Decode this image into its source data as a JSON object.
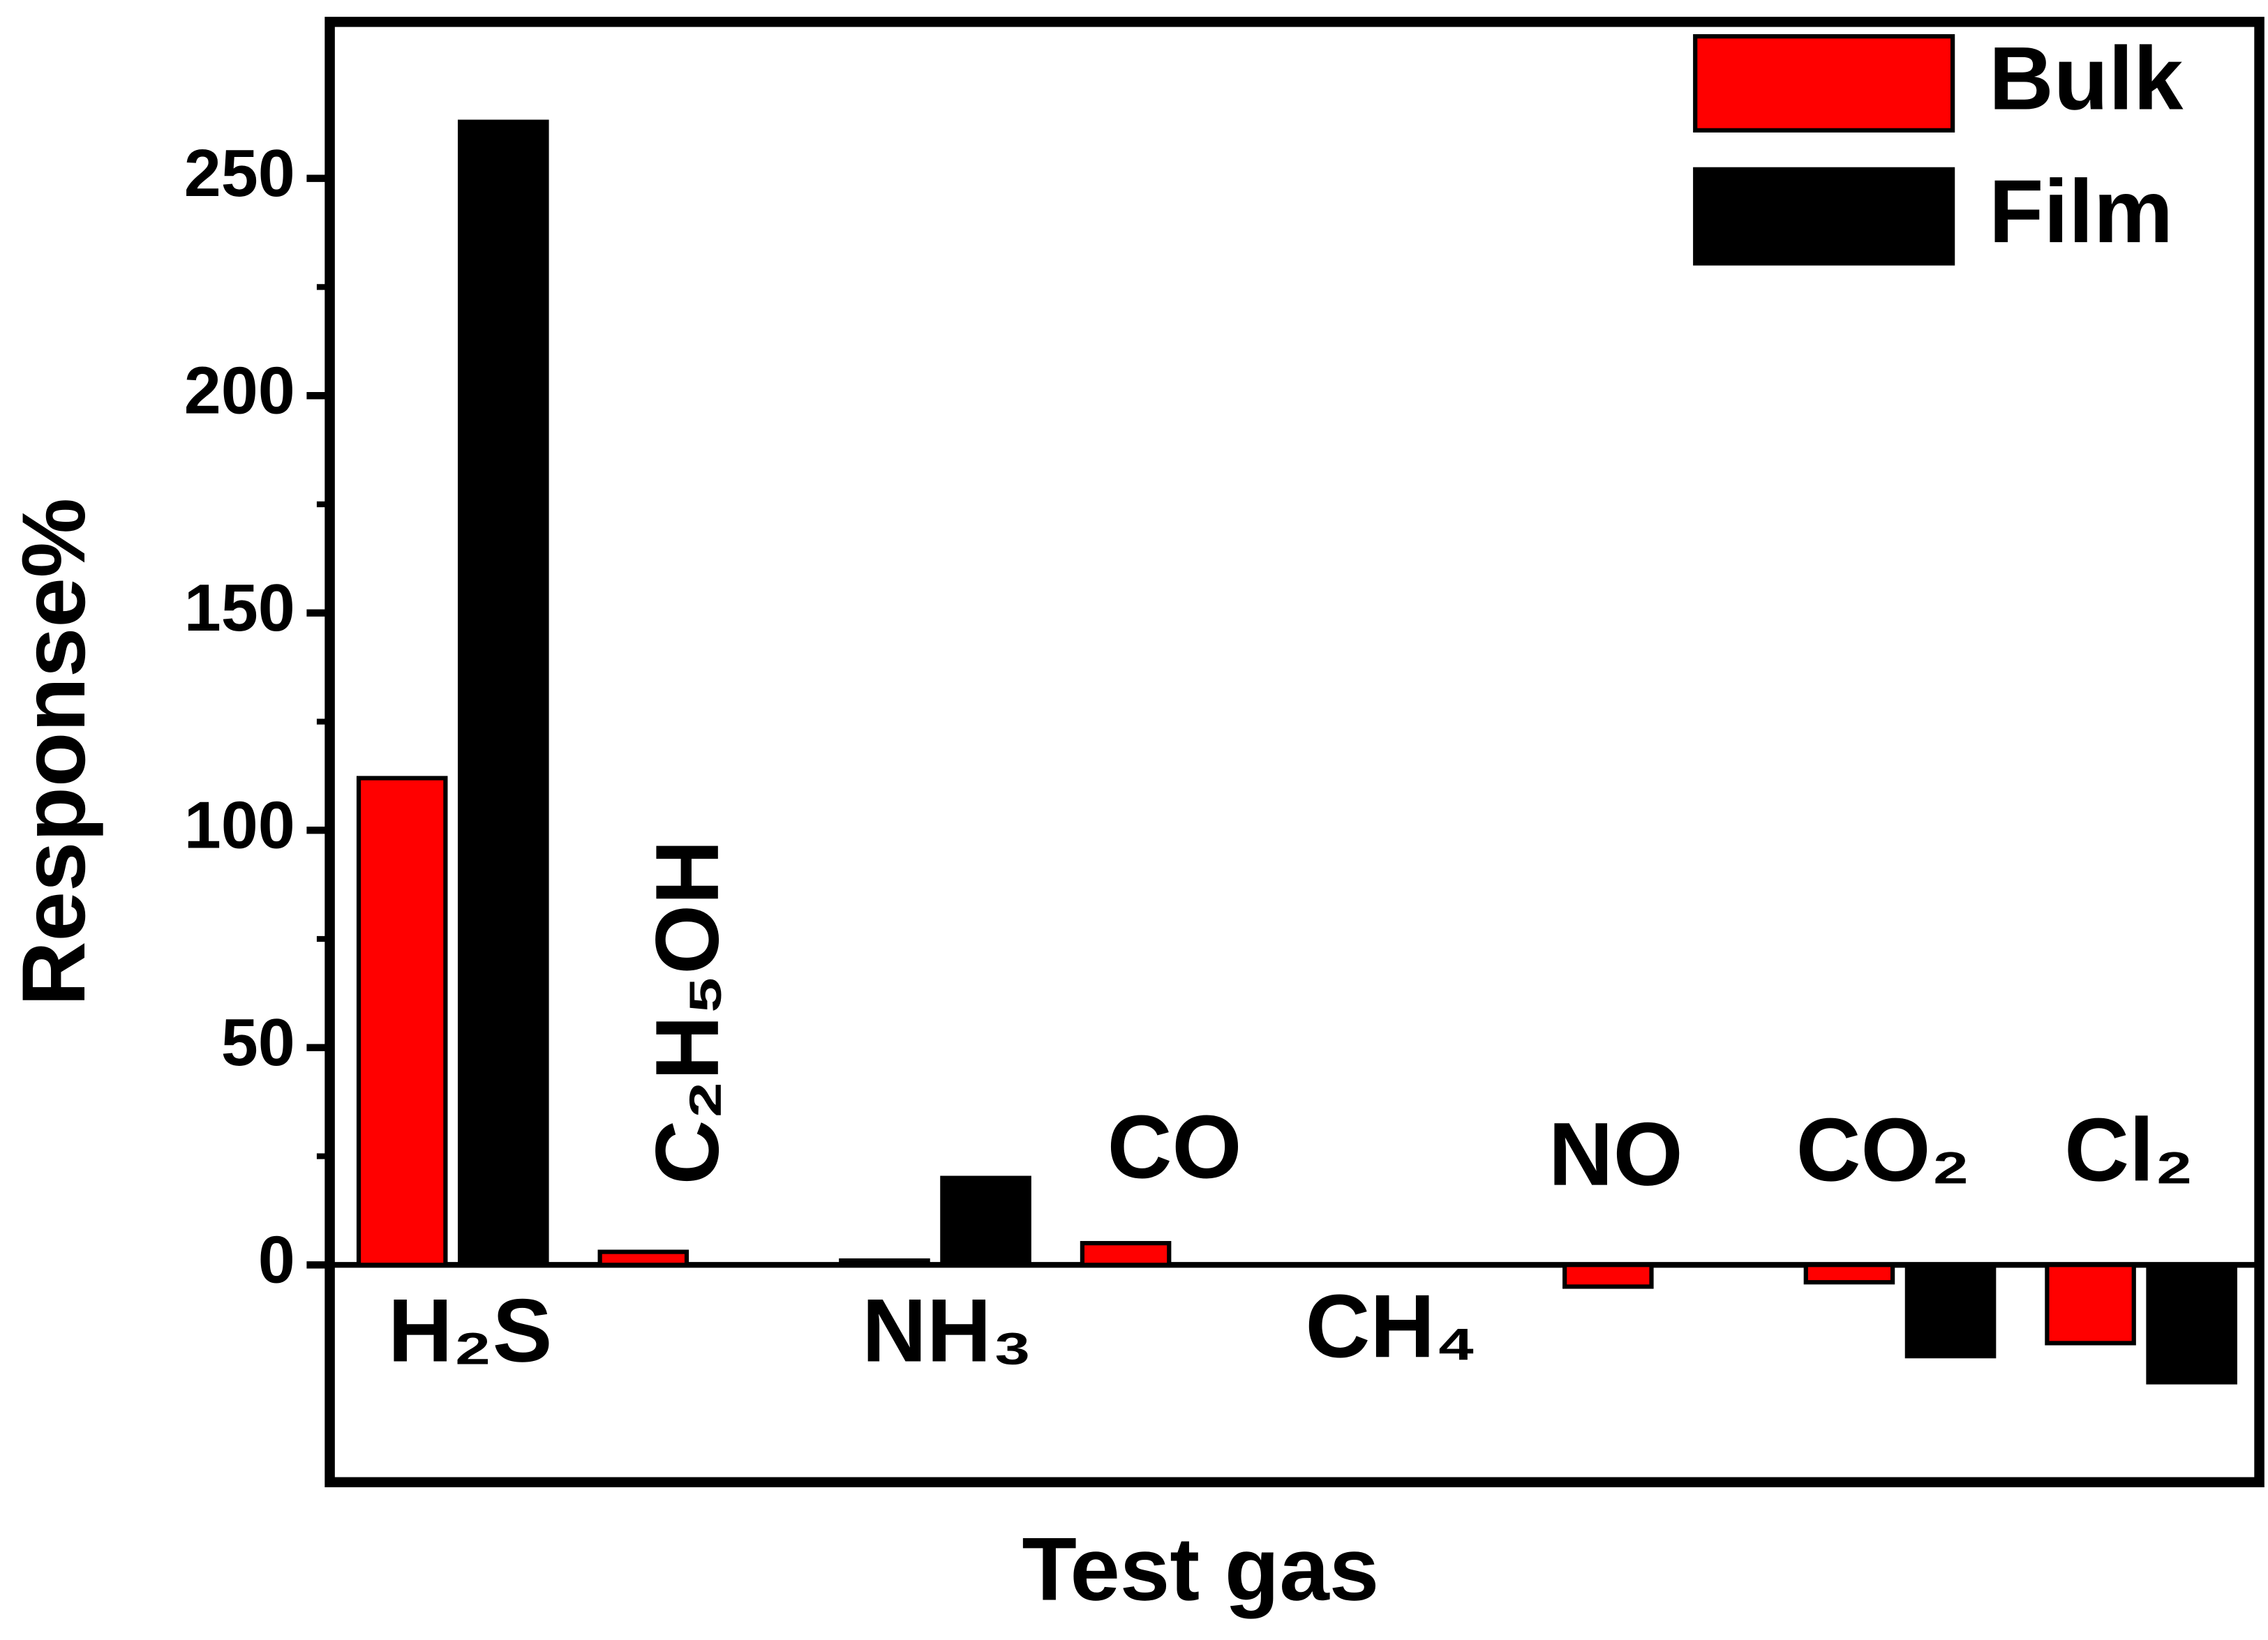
{
  "chart_data": {
    "type": "bar",
    "x_label": "Test gas",
    "y_label": "Response%",
    "categories": [
      "H₂S",
      "C₂H₅OH",
      "NH₃",
      "CO",
      "CH₄",
      "NO",
      "CO₂",
      "Cl₂"
    ],
    "series": [
      {
        "name": "Bulk",
        "color": "#ff0000",
        "values": [
          112,
          3,
          1,
          5,
          0,
          -5,
          -4,
          -18
        ]
      },
      {
        "name": "Film",
        "color": "#000000",
        "values": [
          263,
          0,
          20,
          0,
          0,
          0,
          -21,
          -27
        ]
      }
    ],
    "ylim": [
      -50,
      286
    ],
    "yticks": [
      0,
      50,
      100,
      150,
      200,
      250
    ],
    "legend": "top-right",
    "grid": false
  }
}
